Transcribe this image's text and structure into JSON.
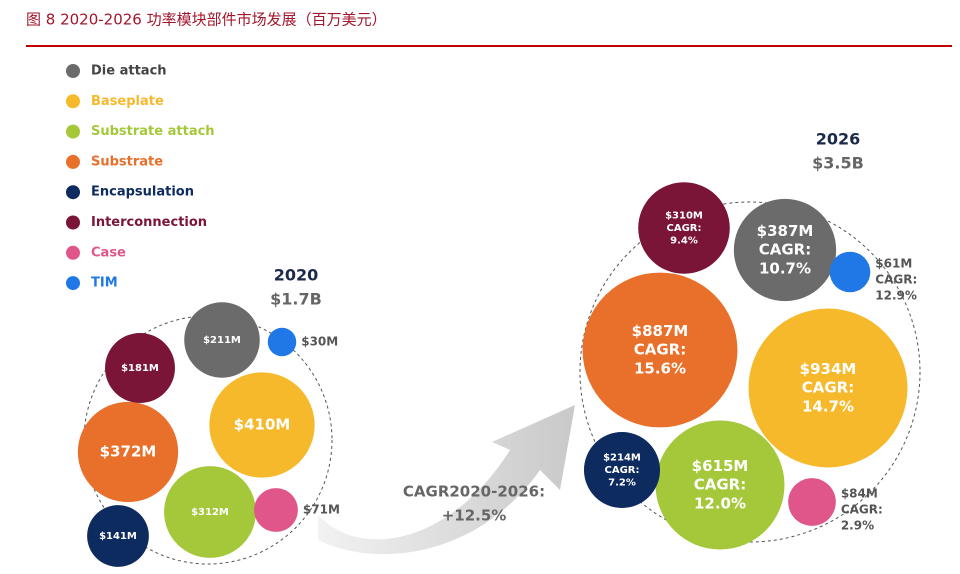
{
  "chart_data": {
    "type": "bubble",
    "title": "图 8 2020-2026 功率模块部件市场发展（百万美元）",
    "series": [
      {
        "name": "Die attach",
        "color": "#6b6b6b"
      },
      {
        "name": "Baseplate",
        "color": "#f6b92c"
      },
      {
        "name": "Substrate attach",
        "color": "#a5c83a"
      },
      {
        "name": "Substrate",
        "color": "#e8702a"
      },
      {
        "name": "Encapsulation",
        "color": "#0e2b5f"
      },
      {
        "name": "Interconnection",
        "color": "#7a1538"
      },
      {
        "name": "Case",
        "color": "#e0568a"
      },
      {
        "name": "TIM",
        "color": "#1f78e6"
      }
    ],
    "groups": [
      {
        "year": "2020",
        "total": "$1.7B",
        "values": [
          211,
          410,
          312,
          372,
          141,
          181,
          71,
          30
        ],
        "value_labels": [
          "$211M",
          "$410M",
          "$312M",
          "$372M",
          "$141M",
          "$181M",
          "$71M",
          "$30M"
        ]
      },
      {
        "year": "2026",
        "total": "$3.5B",
        "values": [
          387,
          934,
          615,
          887,
          214,
          310,
          84,
          61
        ],
        "value_labels": [
          "$387M",
          "$934M",
          "$615M",
          "$887M",
          "$214M",
          "$310M",
          "$84M",
          "$61M"
        ],
        "cagr_labels": [
          [
            "CAGR:",
            "10.7%"
          ],
          [
            "CAGR:",
            "14.7%"
          ],
          [
            "CAGR:",
            "12.0%"
          ],
          [
            "CAGR:",
            "15.6%"
          ],
          [
            "CAGR:",
            "7.2%"
          ],
          [
            "CAGR:",
            "9.4%"
          ],
          [
            "CAGR:",
            "2.9%"
          ],
          [
            "CAGR:",
            "12.9%"
          ]
        ]
      }
    ],
    "annotation": [
      "CAGR2020-2026:",
      "+12.5%"
    ]
  }
}
